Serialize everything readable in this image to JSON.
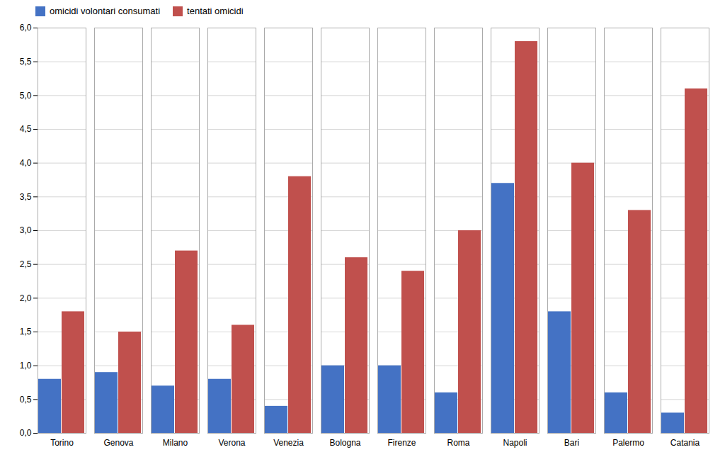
{
  "chart_data": {
    "type": "bar",
    "categories": [
      "Torino",
      "Genova",
      "Milano",
      "Verona",
      "Venezia",
      "Bologna",
      "Firenze",
      "Roma",
      "Napoli",
      "Bari",
      "Palermo",
      "Catania"
    ],
    "series": [
      {
        "name": "omicidi volontari consumati",
        "color": "#4472C4",
        "values": [
          0.8,
          0.9,
          0.7,
          0.8,
          0.4,
          1.0,
          1.0,
          0.6,
          3.7,
          1.8,
          0.6,
          0.3
        ]
      },
      {
        "name": "tentati omicidi",
        "color": "#C0504D",
        "values": [
          1.8,
          1.5,
          2.7,
          1.6,
          3.8,
          2.6,
          2.4,
          3.0,
          5.8,
          4.0,
          3.3,
          5.1
        ]
      }
    ],
    "ylim": [
      0,
      6.0
    ],
    "yticks": [
      {
        "value": 0.0,
        "label": "0,0"
      },
      {
        "value": 0.5,
        "label": "0,5"
      },
      {
        "value": 1.0,
        "label": "1,0"
      },
      {
        "value": 1.5,
        "label": "1,5"
      },
      {
        "value": 2.0,
        "label": "2,0"
      },
      {
        "value": 2.5,
        "label": "2,5"
      },
      {
        "value": 3.0,
        "label": "3,0"
      },
      {
        "value": 3.5,
        "label": "3,5"
      },
      {
        "value": 4.0,
        "label": "4,0"
      },
      {
        "value": 4.5,
        "label": "4,5"
      },
      {
        "value": 5.0,
        "label": "5,0"
      },
      {
        "value": 5.5,
        "label": "5,5"
      },
      {
        "value": 6.0,
        "label": "6,0"
      }
    ],
    "grid": true,
    "legend": "upper left"
  }
}
